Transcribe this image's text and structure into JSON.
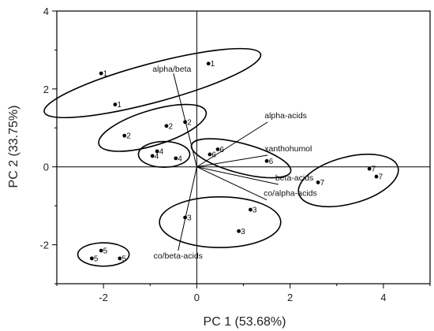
{
  "chart_data": {
    "type": "scatter",
    "xlabel": "PC 1 (53.68%)",
    "ylabel": "PC 2 (33.75%)",
    "xlim": [
      -3,
      5
    ],
    "ylim": [
      -3,
      4
    ],
    "xticks": [
      -2,
      0,
      2,
      4
    ],
    "yticks": [
      -2,
      0,
      2,
      4
    ],
    "grid": false,
    "points": [
      {
        "label": "1",
        "x": -2.05,
        "y": 2.4
      },
      {
        "label": "1",
        "x": -1.75,
        "y": 1.6
      },
      {
        "label": "1",
        "x": 0.25,
        "y": 2.65
      },
      {
        "label": "2",
        "x": -1.55,
        "y": 0.8
      },
      {
        "label": "2",
        "x": -0.65,
        "y": 1.05
      },
      {
        "label": "2",
        "x": -0.25,
        "y": 1.15
      },
      {
        "label": "4",
        "x": -0.85,
        "y": 0.4
      },
      {
        "label": "4",
        "x": -0.95,
        "y": 0.28
      },
      {
        "label": "4",
        "x": -0.45,
        "y": 0.22
      },
      {
        "label": "6",
        "x": 0.45,
        "y": 0.45
      },
      {
        "label": "6",
        "x": 0.28,
        "y": 0.32
      },
      {
        "label": "6",
        "x": 1.5,
        "y": 0.15
      },
      {
        "label": "7",
        "x": 3.7,
        "y": -0.05
      },
      {
        "label": "7",
        "x": 3.85,
        "y": -0.25
      },
      {
        "label": "7",
        "x": 2.6,
        "y": -0.4
      },
      {
        "label": "3",
        "x": -0.25,
        "y": -1.3
      },
      {
        "label": "3",
        "x": 1.15,
        "y": -1.1
      },
      {
        "label": "3",
        "x": 0.9,
        "y": -1.65
      },
      {
        "label": "5",
        "x": -2.05,
        "y": -2.15
      },
      {
        "label": "5",
        "x": -2.25,
        "y": -2.35
      },
      {
        "label": "5",
        "x": -1.65,
        "y": -2.35
      }
    ],
    "ellipses": [
      {
        "group": "1",
        "cx": -0.95,
        "cy": 2.15,
        "rx": 2.4,
        "ry": 0.5,
        "angle_deg": 15
      },
      {
        "group": "2",
        "cx": -0.95,
        "cy": 1.0,
        "rx": 1.2,
        "ry": 0.45,
        "angle_deg": 17
      },
      {
        "group": "4",
        "cx": -0.7,
        "cy": 0.32,
        "rx": 0.55,
        "ry": 0.33,
        "angle_deg": 0
      },
      {
        "group": "6",
        "cx": 0.95,
        "cy": 0.22,
        "rx": 1.1,
        "ry": 0.38,
        "angle_deg": -15
      },
      {
        "group": "7",
        "cx": 3.25,
        "cy": -0.35,
        "rx": 1.1,
        "ry": 0.6,
        "angle_deg": 15
      },
      {
        "group": "3",
        "cx": 0.5,
        "cy": -1.42,
        "rx": 1.3,
        "ry": 0.65,
        "angle_deg": 0
      },
      {
        "group": "5",
        "cx": -2.0,
        "cy": -2.25,
        "rx": 0.55,
        "ry": 0.3,
        "angle_deg": 0
      }
    ],
    "loadings": [
      {
        "name": "alpha/beta",
        "x": -0.5,
        "y": 2.4
      },
      {
        "name": "alpha-acids",
        "x": 1.52,
        "y": 1.15
      },
      {
        "name": "xanthohumol",
        "x": 1.52,
        "y": 0.3
      },
      {
        "name": "beta-acids",
        "x": 1.75,
        "y": -0.45
      },
      {
        "name": "co/alpha-acids",
        "x": 1.5,
        "y": -0.85
      },
      {
        "name": "co/beta-acids",
        "x": -0.4,
        "y": -2.15
      }
    ]
  }
}
